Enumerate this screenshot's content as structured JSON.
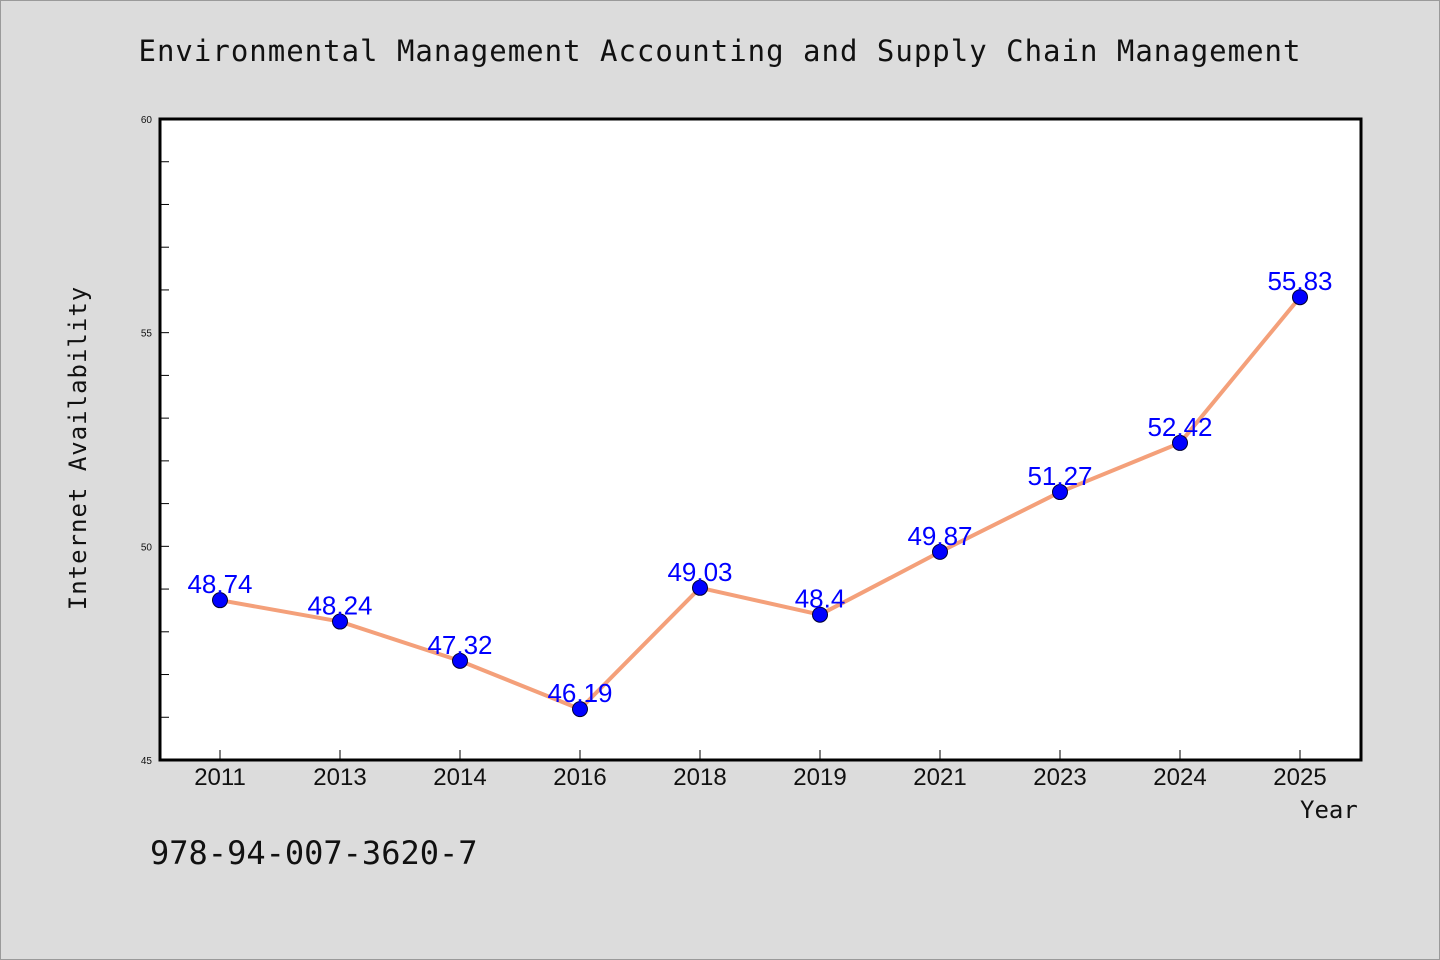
{
  "chart_data": {
    "type": "line",
    "title": "Environmental Management Accounting and Supply Chain Management",
    "xlabel": "Year",
    "ylabel": "Internet Availability",
    "categories": [
      "2011",
      "2013",
      "2014",
      "2016",
      "2018",
      "2019",
      "2021",
      "2023",
      "2024",
      "2025"
    ],
    "series": [
      {
        "values": [
          48.74,
          48.24,
          47.32,
          46.19,
          49.03,
          48.4,
          49.87,
          51.27,
          52.42,
          55.83
        ]
      }
    ],
    "data_labels": [
      "48.74",
      "48.24",
      "47.32",
      "46.19",
      "49.03",
      "48.4",
      "49.87",
      "51.27",
      "52.42",
      "55.83"
    ],
    "ylim": [
      45,
      60
    ],
    "yticks": [
      45,
      50,
      55,
      60
    ],
    "grid": false,
    "colors": {
      "line": "#f4a07a",
      "marker": "#0000ff",
      "labels": "#0000ff",
      "background": "#dcdcdc",
      "plot_background": "#ffffff"
    }
  },
  "footnote": "978-94-007-3620-7"
}
